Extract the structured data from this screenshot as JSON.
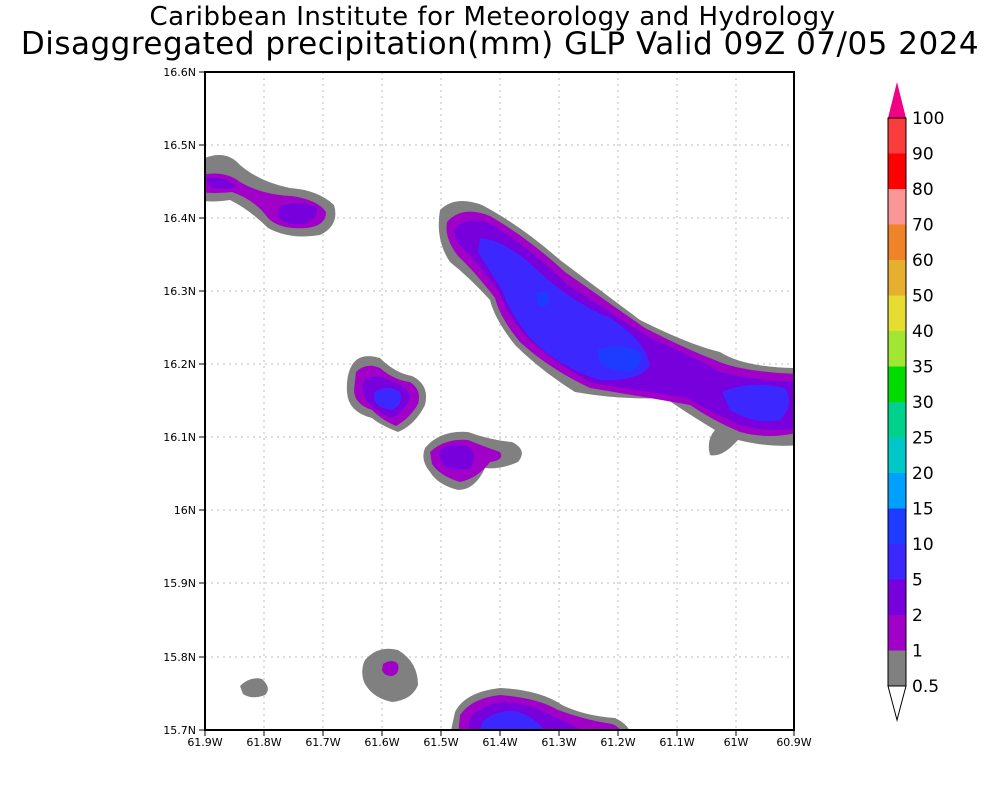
{
  "header": {
    "line1": "Caribbean Institute for Meteorology and Hydrology",
    "line2": "Disaggregated precipitation(mm) GLP Valid 09Z 07/05 2024"
  },
  "map": {
    "lat_labels": [
      "16.6N",
      "16.5N",
      "16.4N",
      "16.3N",
      "16.2N",
      "16.1N",
      "16N",
      "15.9N",
      "15.8N",
      "15.7N"
    ],
    "lon_labels": [
      "61.9W",
      "61.8W",
      "61.7W",
      "61.6W",
      "61.5W",
      "61.4W",
      "61.3W",
      "61.2W",
      "61.1W",
      "61W",
      "60.9W"
    ],
    "lat_range": [
      15.7,
      16.6
    ],
    "lon_range": [
      -61.9,
      -60.9
    ],
    "grid": "dotted"
  },
  "colorbar": {
    "labels": [
      "0.5",
      "1",
      "2",
      "5",
      "10",
      "15",
      "20",
      "25",
      "30",
      "35",
      "40",
      "50",
      "60",
      "70",
      "80",
      "90",
      "100"
    ],
    "colors": {
      "c1": "#808080",
      "c2": "#a000c8",
      "c3": "#7800dc",
      "c4": "#3c28ff",
      "c5": "#1e3cff",
      "c6": "#00a0ff",
      "c7": "#00c8c8",
      "c8": "#00d28c",
      "c9": "#00dc00",
      "c10": "#a0e632",
      "c11": "#e6dc32",
      "c12": "#e6af2d",
      "c13": "#f08228",
      "c14": "#fa9696",
      "c15": "#ff0000",
      "c16": "#fa3c3c",
      "top": "#f00082"
    }
  }
}
